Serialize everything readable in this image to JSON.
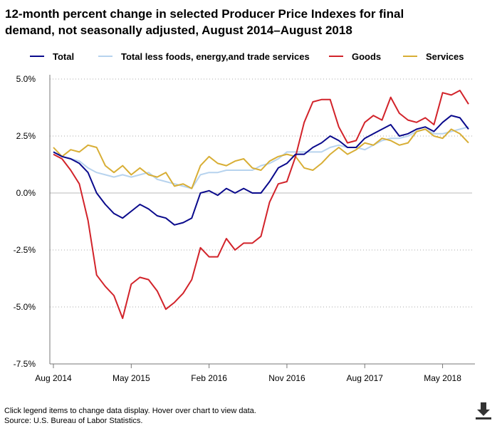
{
  "title": "12-month percent change in selected Producer Price Indexes for final demand, not seasonally adjusted, August 2014–August 2018",
  "legend": [
    {
      "label": "Total",
      "color": "#0a0a8c"
    },
    {
      "label": "Total less foods, energy,and trade services",
      "color": "#b7d3ee"
    },
    {
      "label": "Goods",
      "color": "#d2232a"
    },
    {
      "label": "Services",
      "color": "#d8ae35"
    }
  ],
  "footer": {
    "note": "Click legend items to change data display. Hover over chart to view data.",
    "source": "Source: U.S. Bureau of Labor Statistics."
  },
  "chart_data": {
    "type": "line",
    "title": "12-month percent change in selected Producer Price Indexes for final demand, not seasonally adjusted, August 2014–August 2018",
    "xlabel": "",
    "ylabel": "",
    "ylim": [
      -7.5,
      5.0
    ],
    "grid": true,
    "legend_position": "top",
    "yticks": [
      {
        "value": 5.0,
        "label": "5.0%"
      },
      {
        "value": 2.5,
        "label": "2.5%"
      },
      {
        "value": 0.0,
        "label": "0.0%"
      },
      {
        "value": -2.5,
        "label": "-2.5%"
      },
      {
        "value": -5.0,
        "label": "-5.0%"
      },
      {
        "value": -7.5,
        "label": "-7.5%"
      }
    ],
    "xticks": [
      {
        "index": 0,
        "label": "Aug 2014"
      },
      {
        "index": 9,
        "label": "May 2015"
      },
      {
        "index": 18,
        "label": "Feb 2016"
      },
      {
        "index": 27,
        "label": "Nov 2016"
      },
      {
        "index": 36,
        "label": "Aug 2017"
      },
      {
        "index": 45,
        "label": "May 2018"
      }
    ],
    "series": [
      {
        "name": "Total",
        "color": "#0a0a8c",
        "values": [
          1.8,
          1.6,
          1.5,
          1.3,
          0.9,
          0.0,
          -0.5,
          -0.9,
          -1.1,
          -0.8,
          -0.5,
          -0.7,
          -1.0,
          -1.1,
          -1.4,
          -1.3,
          -1.1,
          0.0,
          0.1,
          -0.1,
          0.2,
          0.0,
          0.2,
          0.0,
          0.0,
          0.5,
          1.1,
          1.3,
          1.7,
          1.7,
          2.0,
          2.2,
          2.5,
          2.3,
          2.0,
          2.0,
          2.4,
          2.6,
          2.8,
          3.0,
          2.5,
          2.6,
          2.8,
          2.9,
          2.7,
          3.1,
          3.4,
          3.3,
          2.8
        ]
      },
      {
        "name": "Total less foods, energy,and trade services",
        "color": "#b7d3ee",
        "values": [
          1.8,
          1.6,
          1.5,
          1.4,
          1.1,
          0.9,
          0.8,
          0.7,
          0.8,
          0.7,
          0.8,
          0.9,
          0.6,
          0.5,
          0.4,
          0.3,
          0.2,
          0.8,
          0.9,
          0.9,
          1.0,
          1.0,
          1.0,
          1.0,
          1.2,
          1.3,
          1.5,
          1.8,
          1.8,
          1.8,
          1.8,
          1.8,
          2.0,
          2.1,
          2.0,
          2.0,
          1.9,
          2.1,
          2.3,
          2.4,
          2.4,
          2.5,
          2.7,
          2.8,
          2.6,
          2.6,
          2.7,
          2.8,
          2.9
        ]
      },
      {
        "name": "Goods",
        "color": "#d2232a",
        "values": [
          1.7,
          1.5,
          1.0,
          0.4,
          -1.2,
          -3.6,
          -4.1,
          -4.5,
          -5.5,
          -4.0,
          -3.7,
          -3.8,
          -4.3,
          -5.1,
          -4.8,
          -4.4,
          -3.8,
          -2.4,
          -2.8,
          -2.8,
          -2.0,
          -2.5,
          -2.2,
          -2.2,
          -1.9,
          -0.4,
          0.4,
          0.5,
          1.6,
          3.1,
          4.0,
          4.1,
          4.1,
          2.9,
          2.2,
          2.3,
          3.1,
          3.4,
          3.2,
          4.2,
          3.5,
          3.2,
          3.1,
          3.3,
          3.0,
          4.4,
          4.3,
          4.5,
          3.9
        ]
      },
      {
        "name": "Services",
        "color": "#d8ae35",
        "values": [
          2.0,
          1.6,
          1.9,
          1.8,
          2.1,
          2.0,
          1.2,
          0.9,
          1.2,
          0.8,
          1.1,
          0.8,
          0.7,
          0.9,
          0.3,
          0.4,
          0.2,
          1.2,
          1.6,
          1.3,
          1.2,
          1.4,
          1.5,
          1.1,
          1.0,
          1.4,
          1.6,
          1.7,
          1.6,
          1.1,
          1.0,
          1.3,
          1.7,
          2.0,
          1.7,
          1.9,
          2.2,
          2.1,
          2.4,
          2.3,
          2.1,
          2.2,
          2.7,
          2.8,
          2.5,
          2.4,
          2.8,
          2.6,
          2.2
        ]
      }
    ]
  }
}
